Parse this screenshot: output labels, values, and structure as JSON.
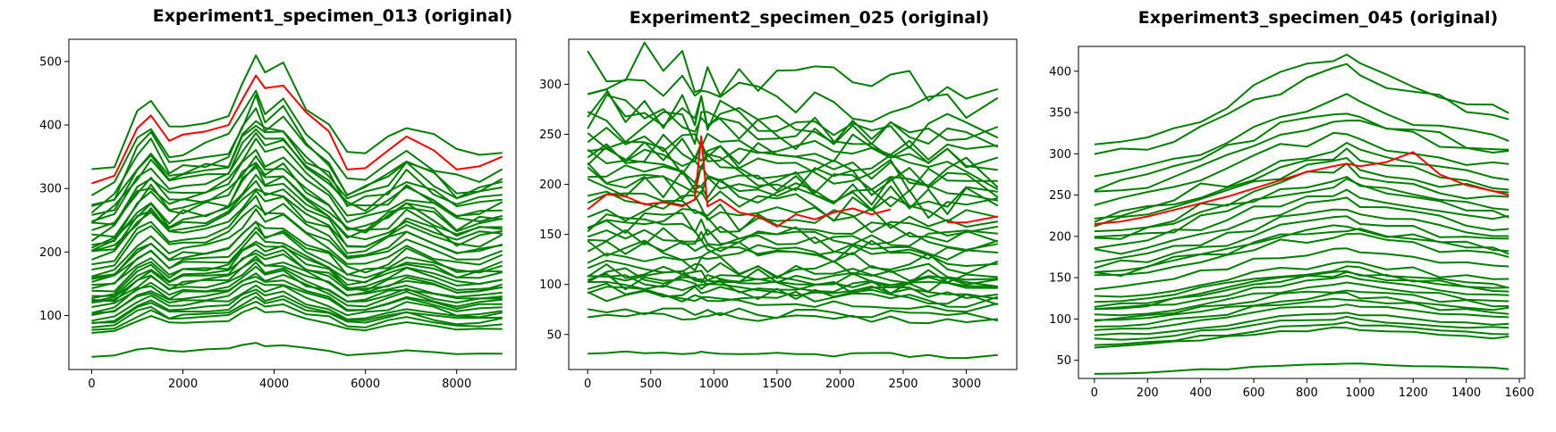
{
  "chart_data": [
    {
      "type": "line",
      "title": "Experiment1_specimen_013 (original)",
      "xlim": [
        -500,
        9300
      ],
      "ylim": [
        15,
        535
      ],
      "xticks": [
        0,
        2000,
        4000,
        6000,
        8000
      ],
      "yticks": [
        100,
        200,
        300,
        400,
        500
      ],
      "x": [
        0,
        500,
        1000,
        1300,
        1700,
        2000,
        2500,
        3000,
        3300,
        3600,
        3800,
        4200,
        4700,
        5200,
        5600,
        6000,
        6500,
        6900,
        7500,
        8000,
        8500,
        9000
      ],
      "base_shape": [
        1.0,
        1.05,
        1.28,
        1.36,
        1.2,
        1.24,
        1.26,
        1.3,
        1.45,
        1.57,
        1.47,
        1.51,
        1.34,
        1.24,
        1.08,
        1.08,
        1.16,
        1.25,
        1.16,
        1.08,
        1.1,
        1.13
      ],
      "series_colors": {
        "normal": "#008000",
        "highlight": "#ff0000"
      },
      "highlight_series": {
        "name": "",
        "values": [
          308,
          320,
          395,
          415,
          375,
          385,
          390,
          400,
          440,
          478,
          458,
          462,
          420,
          390,
          330,
          332,
          360,
          382,
          360,
          330,
          335,
          350
        ]
      },
      "other_series_start_values": [
        325,
        290,
        278,
        272,
        265,
        258,
        252,
        245,
        238,
        232,
        225,
        220,
        215,
        210,
        205,
        200,
        195,
        188,
        180,
        175,
        168,
        160,
        155,
        150,
        145,
        140,
        136,
        132,
        128,
        124,
        120,
        116,
        112,
        108,
        104,
        100,
        95,
        90,
        86,
        82,
        78,
        72,
        36
      ]
    },
    {
      "type": "line",
      "title": "Experiment2_specimen_025 (original)",
      "xlim": [
        -150,
        3400
      ],
      "ylim": [
        15,
        345
      ],
      "xticks": [
        0,
        500,
        1000,
        1500,
        2000,
        2500,
        3000
      ],
      "yticks": [
        50,
        100,
        150,
        200,
        250,
        300
      ],
      "x": [
        0,
        150,
        300,
        450,
        600,
        750,
        850,
        900,
        950,
        1050,
        1200,
        1350,
        1500,
        1650,
        1800,
        1950,
        2100,
        2250,
        2400,
        2550,
        2700,
        2850,
        3000,
        3250
      ],
      "base_shape": [
        1.0,
        1.01,
        0.99,
        1.0,
        0.98,
        0.99,
        0.97,
        0.98,
        0.97,
        0.96,
        0.95,
        0.95,
        0.93,
        0.94,
        0.93,
        0.93,
        0.93,
        0.92,
        0.92,
        0.91,
        0.9,
        0.9,
        0.89,
        0.89
      ],
      "series_colors": {
        "normal": "#008000",
        "highlight": "#ff0000"
      },
      "highlight_series": {
        "name": "",
        "values": [
          175,
          190,
          188,
          180,
          182,
          178,
          185,
          248,
          178,
          185,
          172,
          168,
          158,
          170,
          165,
          172,
          176,
          170,
          175,
          null,
          null,
          162,
          162,
          168
        ]
      },
      "other_series_start_values": [
        322,
        300,
        280,
        276,
        270,
        262,
        250,
        245,
        238,
        232,
        228,
        222,
        215,
        210,
        205,
        200,
        190,
        182,
        175,
        168,
        162,
        158,
        150,
        145,
        140,
        135,
        125,
        120,
        115,
        112,
        110,
        106,
        103,
        100,
        96,
        92,
        88,
        75,
        70,
        32
      ]
    },
    {
      "type": "line",
      "title": "Experiment3_specimen_045 (original)",
      "xlim": [
        -60,
        1620
      ],
      "ylim": [
        28,
        430
      ],
      "xticks": [
        0,
        200,
        400,
        600,
        800,
        1000,
        1200,
        1400,
        1600
      ],
      "yticks": [
        50,
        100,
        150,
        200,
        250,
        300,
        350,
        400
      ],
      "x": [
        0,
        100,
        200,
        300,
        400,
        500,
        600,
        700,
        800,
        900,
        950,
        1000,
        1100,
        1200,
        1300,
        1400,
        1500,
        1560
      ],
      "base_shape": [
        1.0,
        1.01,
        1.04,
        1.08,
        1.13,
        1.17,
        1.23,
        1.28,
        1.31,
        1.34,
        1.36,
        1.33,
        1.29,
        1.27,
        1.23,
        1.2,
        1.18,
        1.17
      ],
      "series_colors": {
        "normal": "#008000",
        "highlight": "#ff0000"
      },
      "highlight_series": {
        "name": "",
        "values": [
          215,
          218,
          224,
          232,
          240,
          248,
          258,
          268,
          278,
          285,
          288,
          285,
          290,
          302,
          275,
          262,
          255,
          250
        ]
      },
      "other_series_start_values": [
        306,
        295,
        268,
        262,
        255,
        240,
        228,
        222,
        215,
        208,
        200,
        195,
        188,
        180,
        172,
        165,
        158,
        155,
        150,
        138,
        125,
        120,
        117,
        114,
        110,
        105,
        100,
        96,
        92,
        87,
        80,
        75,
        70,
        66,
        34
      ]
    }
  ]
}
